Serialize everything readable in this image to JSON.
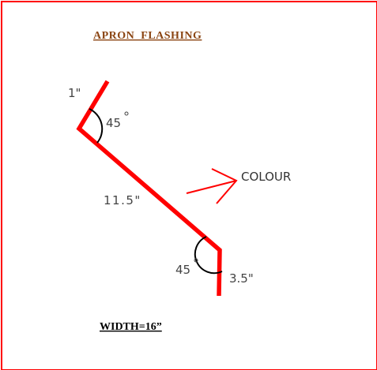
{
  "title": "APRON  FLASHING",
  "width_label": "WIDTH=16”",
  "dimensions": {
    "top_leg": "1\"",
    "top_angle": "45",
    "main_length": "11.5\"",
    "bottom_angle": "45",
    "bottom_leg": "3.5\""
  },
  "colour_label": "COLOUR",
  "colors": {
    "frame": "#ff0000",
    "profile": "#ff0000",
    "title": "#8b4513",
    "arc": "#000000"
  }
}
